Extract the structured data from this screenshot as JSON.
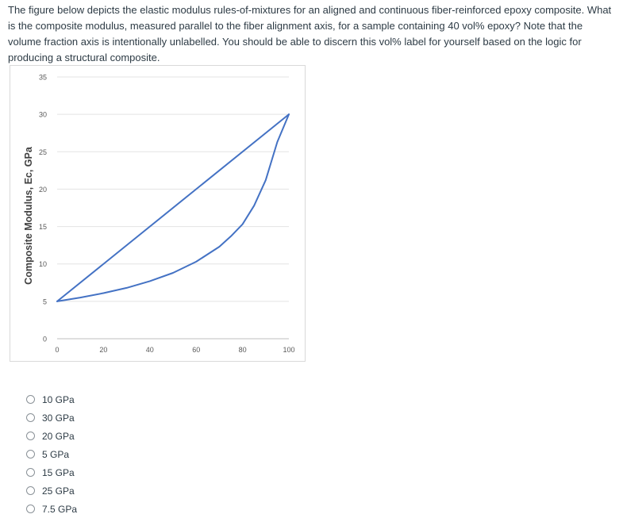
{
  "question": {
    "text": "The figure below depicts the elastic modulus rules-of-mixtures for an aligned and continuous fiber-reinforced epoxy composite. What is the composite modulus, measured parallel to the fiber alignment axis, for a sample containing 40 vol% epoxy? Note that the volume fraction axis is intentionally unlabelled. You should be able to discern this vol% label for yourself based on the logic for producing a structural composite."
  },
  "chart_data": {
    "type": "line",
    "title": "",
    "xlabel": "",
    "ylabel": "Composite Modulus, Ec, GPa",
    "xlim": [
      0,
      100
    ],
    "ylim": [
      0,
      35
    ],
    "xticks": [
      0,
      20,
      40,
      60,
      80,
      100
    ],
    "yticks": [
      0,
      5,
      10,
      15,
      20,
      25,
      30,
      35
    ],
    "grid": "horizontal",
    "color": "#4472c4",
    "series": [
      {
        "x": [
          0,
          100
        ],
        "y": [
          5,
          30
        ]
      },
      {
        "x": [
          0,
          10,
          20,
          30,
          40,
          50,
          60,
          70,
          75,
          80,
          85,
          90,
          95,
          100
        ],
        "y": [
          5,
          5.5,
          6.1,
          6.8,
          7.7,
          8.8,
          10.3,
          12.3,
          13.7,
          15.3,
          17.8,
          21.2,
          26.3,
          30
        ]
      }
    ]
  },
  "options": [
    {
      "label": "10 GPa"
    },
    {
      "label": "30 GPa"
    },
    {
      "label": "20 GPa"
    },
    {
      "label": "5 GPa"
    },
    {
      "label": "15 GPa"
    },
    {
      "label": "25 GPa"
    },
    {
      "label": "7.5 GPa"
    }
  ]
}
